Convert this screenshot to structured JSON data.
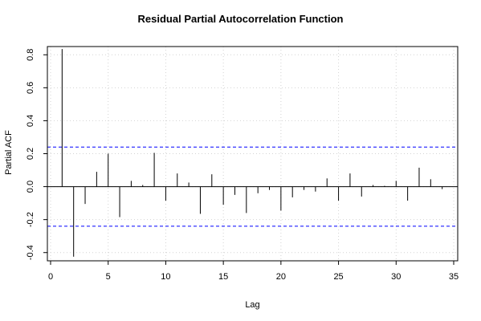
{
  "chart_data": {
    "type": "bar",
    "title": "Residual Partial Autocorrelation Function",
    "xlabel": "Lag",
    "ylabel": "Partial ACF",
    "xlim": [
      0,
      35
    ],
    "ylim": [
      -0.45,
      0.85
    ],
    "x_ticks": [
      0,
      5,
      10,
      15,
      20,
      25,
      30,
      35
    ],
    "x_tick_labels": [
      "0",
      "5",
      "10",
      "15",
      "20",
      "25",
      "30",
      "35"
    ],
    "y_ticks": [
      -0.4,
      -0.2,
      0.0,
      0.2,
      0.4,
      0.6,
      0.8
    ],
    "y_tick_labels": [
      "-0.4",
      "-0.2",
      "0.0",
      "0.2",
      "0.4",
      "0.6",
      "0.8"
    ],
    "grid": true,
    "confidence_bound": 0.24,
    "lags": [
      1,
      2,
      3,
      4,
      5,
      6,
      7,
      8,
      9,
      10,
      11,
      12,
      13,
      14,
      15,
      16,
      17,
      18,
      19,
      20,
      21,
      22,
      23,
      24,
      25,
      26,
      27,
      28,
      29,
      30,
      31,
      32,
      33,
      34
    ],
    "values": [
      0.835,
      -0.425,
      -0.105,
      0.09,
      0.2,
      -0.185,
      0.035,
      0.01,
      0.205,
      -0.085,
      0.08,
      0.025,
      -0.165,
      0.075,
      -0.11,
      -0.05,
      -0.16,
      -0.04,
      -0.02,
      -0.145,
      -0.065,
      -0.02,
      -0.03,
      0.05,
      -0.085,
      0.08,
      -0.06,
      0.01,
      0.005,
      0.035,
      -0.085,
      0.115,
      0.045,
      -0.015
    ],
    "colors": {
      "bars": "#000000",
      "bounds": "#0000ff",
      "grid": "#d3d3d3",
      "axis": "#000000"
    }
  }
}
